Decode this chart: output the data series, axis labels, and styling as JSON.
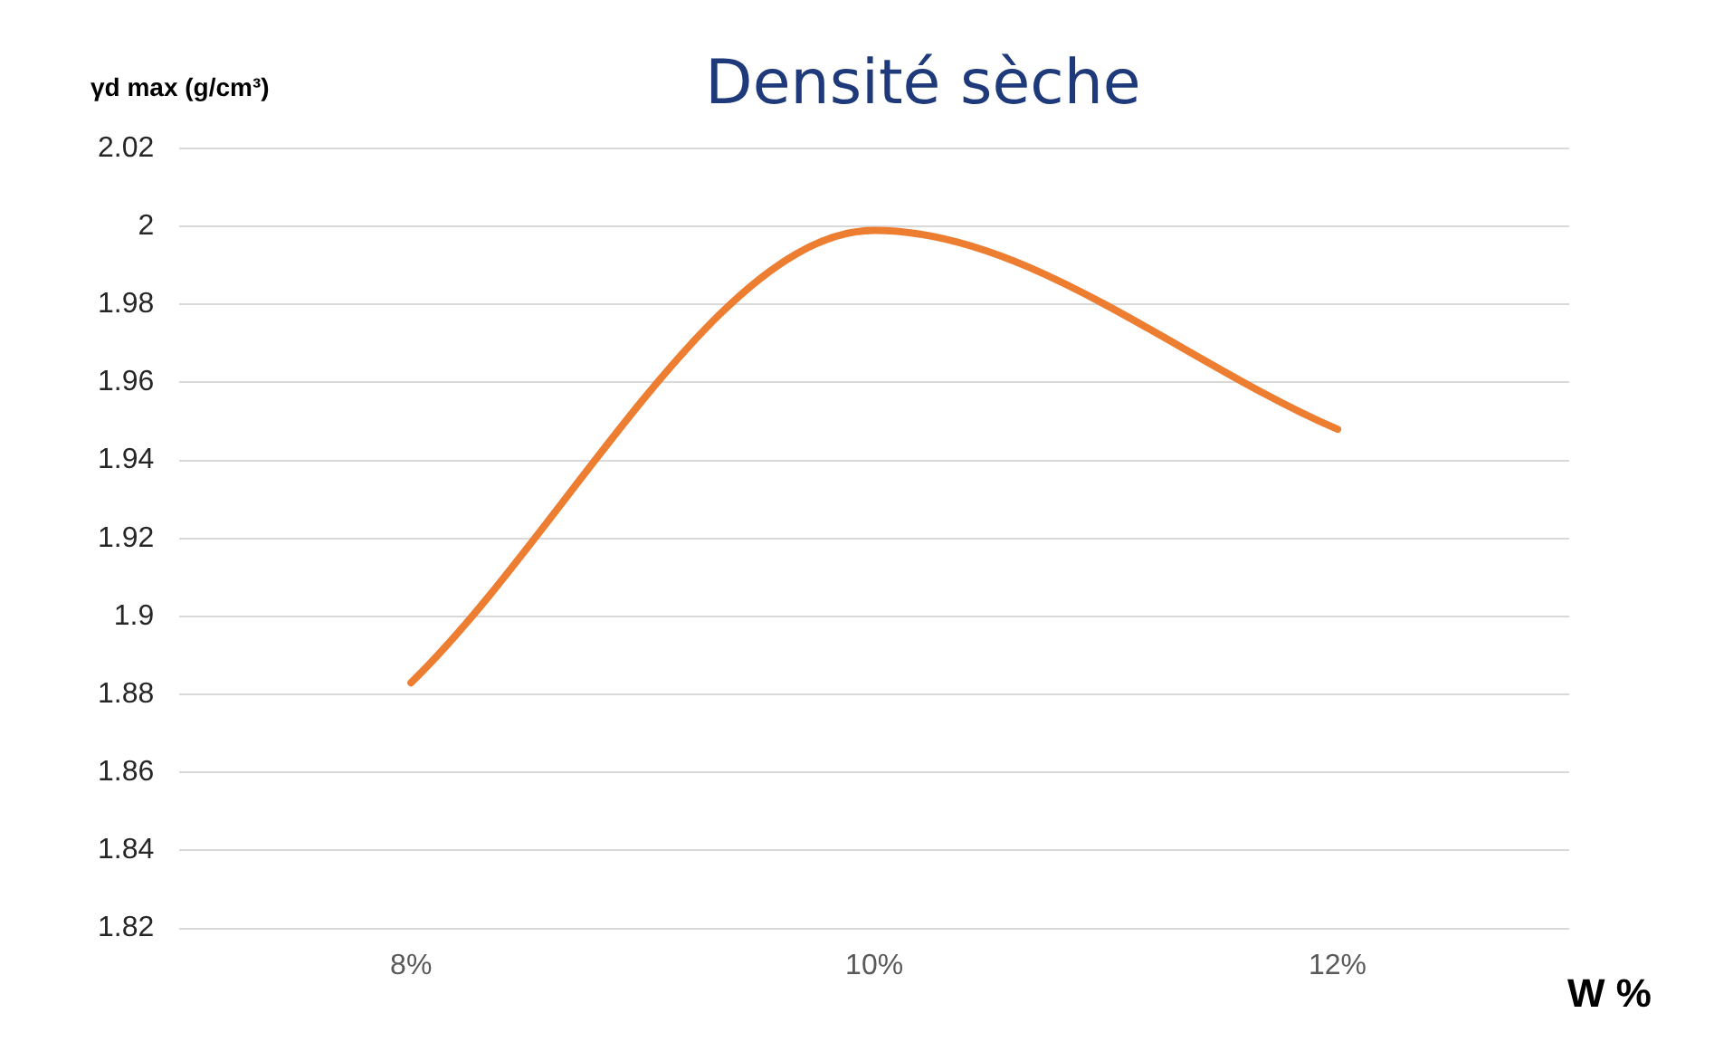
{
  "chart_data": {
    "type": "line",
    "title": "Densité sèche",
    "ylabel": "γd max (g/cm³)",
    "xlabel": "W %",
    "categories": [
      "8%",
      "10%",
      "12%"
    ],
    "series": [
      {
        "color": "#ed7d31",
        "values": [
          1.883,
          1.999,
          1.948
        ]
      }
    ],
    "ylim": [
      1.82,
      2.02
    ],
    "yticks": [
      1.82,
      1.84,
      1.86,
      1.88,
      1.9,
      1.92,
      1.94,
      1.96,
      1.98,
      2,
      2.02
    ],
    "grid": "y",
    "legend": false,
    "marker": "none",
    "line_style": "solid"
  }
}
